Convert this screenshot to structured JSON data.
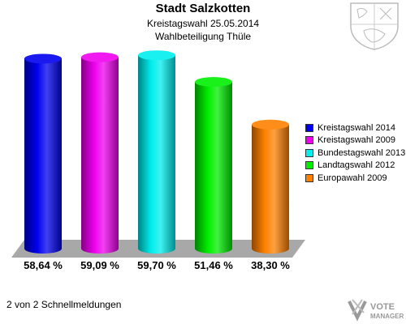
{
  "header": {
    "title": "Stadt Salzkotten",
    "subtitle": "Kreistagswahl 25.05.2014",
    "subtitle2": "Wahlbeteiligung Thüle"
  },
  "footer": {
    "text": "2 von 2 Schnellmeldungen"
  },
  "logo": {
    "line1": "VOTE",
    "line2": "MANAGER"
  },
  "chart_data": {
    "type": "bar",
    "title": "Stadt Salzkotten",
    "subtitle": "Kreistagswahl 25.05.2014 / Wahlbeteiligung Thüle",
    "xlabel": "",
    "ylabel": "",
    "ylim": [
      0,
      65
    ],
    "grid": false,
    "legend_position": "right",
    "categories": [
      "Kreistagswahl 2014",
      "Kreistagswahl 2009",
      "Bundestagswahl 2013",
      "Landtagswahl 2012",
      "Europawahl 2009"
    ],
    "values": [
      58.64,
      59.09,
      59.7,
      51.46,
      38.3
    ],
    "value_labels": [
      "58,64 %",
      "59,09 %",
      "59,70 %",
      "51,46 %",
      "38,30 %"
    ],
    "colors": [
      "#0000ee",
      "#ee00ee",
      "#00eeee",
      "#00ee00",
      "#ff8000"
    ]
  }
}
